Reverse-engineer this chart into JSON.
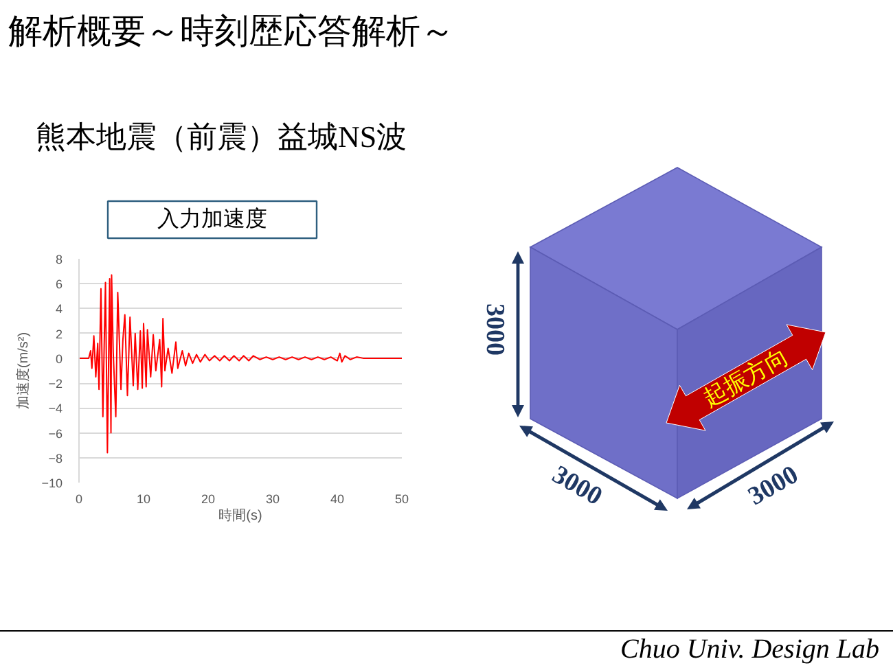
{
  "chart_data": {
    "type": "line",
    "title": "解析概要～時刻歴応答解析～",
    "subtitle": "熊本地震（前震）益城NS波",
    "xlabel": "時間(s)",
    "ylabel": "加速度(m/s²)",
    "x": [
      0,
      1.5,
      1.8,
      2.0,
      2.3,
      2.6,
      2.9,
      3.1,
      3.4,
      3.7,
      3.9,
      4.1,
      4.4,
      4.75,
      4.95,
      5.05,
      5.3,
      5.7,
      6.0,
      6.5,
      6.8,
      7.1,
      7.5,
      7.9,
      8.4,
      8.7,
      9.1,
      9.5,
      9.8,
      10.0,
      10.4,
      10.6,
      11.1,
      11.5,
      11.9,
      12.5,
      12.8,
      13.0,
      13.3,
      13.8,
      14.4,
      15.0,
      15.3,
      16.0,
      16.5,
      17.0,
      17.6,
      18.2,
      18.8,
      19.5,
      20.2,
      21.0,
      21.8,
      22.5,
      23.3,
      24.0,
      24.8,
      25.5,
      26.3,
      27.0,
      28,
      29,
      30,
      31,
      32,
      33,
      34,
      35,
      36,
      37,
      38,
      39,
      40,
      40.4,
      40.7,
      41.2,
      42,
      43,
      44,
      50
    ],
    "series": [
      {
        "color": "#ff0000",
        "values": [
          0,
          0,
          0.6,
          -0.8,
          1.8,
          -1.5,
          1.2,
          -2.5,
          5.6,
          -4.7,
          1.0,
          6.1,
          -7.6,
          6.4,
          -6.0,
          6.7,
          0.5,
          -4.7,
          5.3,
          -2.5,
          1.5,
          3.5,
          -3.0,
          3.3,
          -2.2,
          2.0,
          -2.5,
          2.2,
          -2.4,
          2.8,
          -2.3,
          2.3,
          -1.5,
          1.9,
          -1.0,
          1.5,
          -2.3,
          3.2,
          -1.0,
          0.8,
          -1.2,
          1.3,
          -0.8,
          0.6,
          -0.6,
          0.4,
          -0.4,
          0.3,
          -0.3,
          0.3,
          -0.2,
          0.2,
          -0.2,
          0.2,
          -0.2,
          0.2,
          -0.2,
          0.2,
          -0.2,
          0.2,
          -0.1,
          0.1,
          -0.1,
          0.1,
          -0.1,
          0.1,
          -0.1,
          0.1,
          -0.1,
          0.1,
          -0.1,
          0.1,
          -0.2,
          0.4,
          -0.3,
          0.2,
          -0.1,
          0.1,
          0,
          0
        ]
      }
    ],
    "xlim": [
      0,
      50
    ],
    "ylim": [
      -10,
      8
    ],
    "xticks": [
      0,
      10,
      20,
      30,
      40,
      50
    ],
    "yticks": [
      -10,
      -8,
      -6,
      -4,
      -2,
      0,
      2,
      4,
      6,
      8
    ],
    "grid": "y",
    "annotations": [
      "入力加速度",
      "3000",
      "3000",
      "3000",
      "起振方向",
      "Chuo Univ. Design Lab"
    ]
  }
}
